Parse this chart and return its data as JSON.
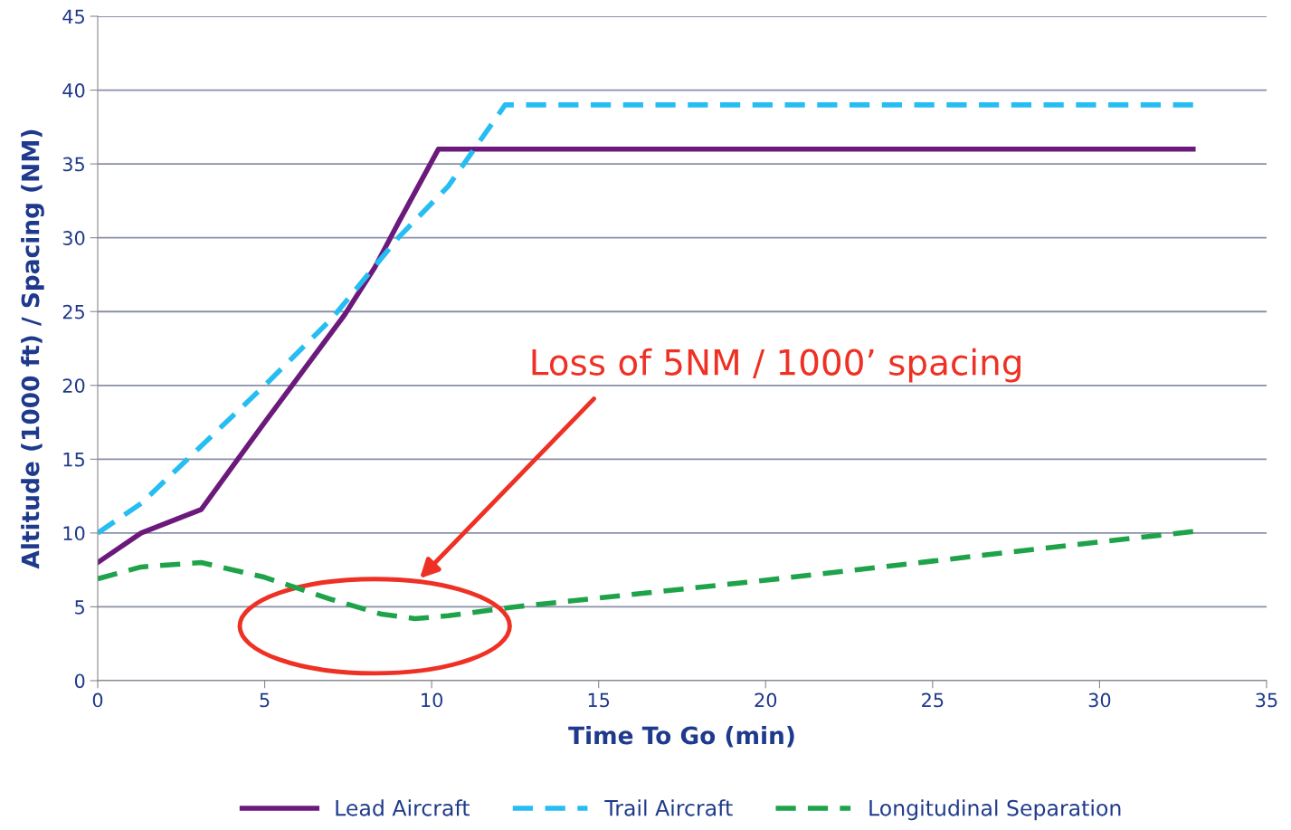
{
  "chart_data": {
    "type": "line",
    "xlabel": "Time To Go (min)",
    "ylabel": "Altitude (1000 ft) / Spacing (NM)",
    "series": [
      {
        "name": "Lead Aircraft",
        "color": "#6b1a7c",
        "line_style": "solid",
        "x": [
          0,
          1.3,
          3.1,
          5,
          7.4,
          8.3,
          9,
          10.2,
          32.8
        ],
        "values": [
          8,
          10,
          11.6,
          17.5,
          24.8,
          28,
          31,
          36,
          36
        ]
      },
      {
        "name": "Trail Aircraft",
        "color": "#26bdf2",
        "line_style": "dashed",
        "x": [
          0,
          1.3,
          5,
          7,
          9,
          10.5,
          12.2,
          32.8
        ],
        "values": [
          10,
          12,
          20,
          24.5,
          30,
          33.5,
          39,
          39
        ]
      },
      {
        "name": "Longitudinal Separation",
        "color": "#1ea34a",
        "line_style": "dotted",
        "x": [
          0,
          1.3,
          3.1,
          5,
          7,
          8.5,
          9.5,
          10.5,
          12.5,
          15,
          20,
          25,
          30,
          32.8
        ],
        "values": [
          6.9,
          7.7,
          8,
          7,
          5.5,
          4.5,
          4.2,
          4.4,
          5,
          5.6,
          6.8,
          8.1,
          9.4,
          10.1
        ]
      }
    ],
    "annotations": [
      "Loss of 5NM / 1000’ spacing"
    ],
    "xlim": [
      0,
      35
    ],
    "xticks": [
      0,
      5,
      10,
      15,
      20,
      25,
      30,
      35
    ],
    "ylim": [
      0,
      45
    ],
    "yticks": [
      0,
      5,
      10,
      15,
      20,
      25,
      30,
      35,
      40,
      45
    ],
    "grid": "y",
    "legend": "bottom",
    "marker": "none"
  }
}
